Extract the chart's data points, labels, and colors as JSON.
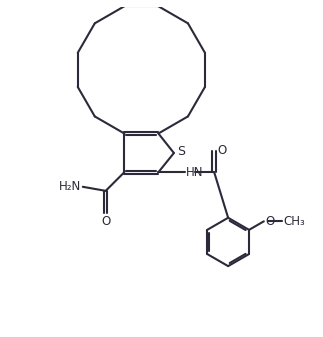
{
  "background_color": "#ffffff",
  "line_color": "#2a2a3a",
  "line_width": 1.5,
  "dbo": 0.055,
  "fs": 8.5,
  "figsize": [
    3.23,
    3.37
  ],
  "dpi": 100,
  "xlim": [
    0,
    10
  ],
  "ylim": [
    0,
    10.44
  ]
}
